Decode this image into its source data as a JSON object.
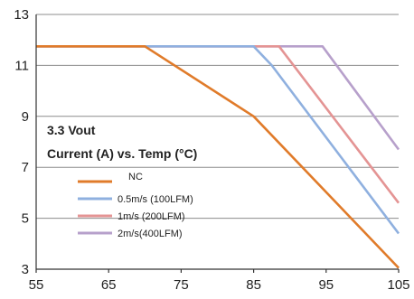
{
  "chart_data": {
    "type": "line",
    "title": "",
    "xlabel": "",
    "ylabel": "",
    "xlim": [
      55,
      105
    ],
    "ylim": [
      3,
      13
    ],
    "x_ticks": [
      55,
      65,
      75,
      85,
      95,
      105
    ],
    "y_ticks": [
      3,
      5,
      7,
      9,
      11,
      13
    ],
    "grid": "horizontal",
    "annotation": [
      "3.3 Vout",
      "Current (A) vs. Temp (°C)"
    ],
    "legend_position": "center-left",
    "series": [
      {
        "name": "NC",
        "color": "#e07b2a",
        "points": [
          [
            55,
            11.75
          ],
          [
            70,
            11.75
          ],
          [
            85,
            9.0
          ],
          [
            105,
            3.05
          ]
        ]
      },
      {
        "name": "0.5m/s (100LFM)",
        "color": "#8fb0df",
        "points": [
          [
            55,
            11.75
          ],
          [
            85,
            11.75
          ],
          [
            87.5,
            11.0
          ],
          [
            105,
            4.4
          ]
        ]
      },
      {
        "name": "1m/s (200LFM)",
        "color": "#e49494",
        "points": [
          [
            55,
            11.75
          ],
          [
            88.5,
            11.75
          ],
          [
            105,
            5.6
          ]
        ]
      },
      {
        "name": "2m/s(400LFM)",
        "color": "#b7a0cb",
        "points": [
          [
            55,
            11.75
          ],
          [
            94.5,
            11.75
          ],
          [
            105,
            7.7
          ]
        ]
      }
    ]
  }
}
